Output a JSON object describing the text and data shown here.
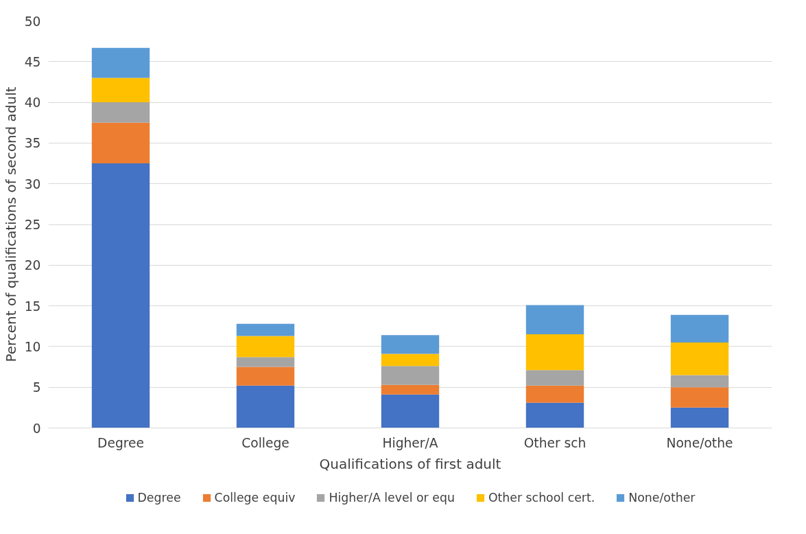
{
  "chart_data": {
    "type": "bar",
    "stacked": true,
    "xlabel": "Qualifications of first adult",
    "ylabel": "Percent of qualifications of second adult",
    "categories": [
      "Degree",
      "College",
      "Higher/A",
      "Other sch",
      "None/othe"
    ],
    "series": [
      {
        "name": "Degree",
        "color": "#4472c4",
        "values": [
          32.5,
          5.2,
          4.1,
          3.1,
          2.5
        ]
      },
      {
        "name": "College equiv",
        "color": "#ed7d31",
        "values": [
          5.0,
          2.3,
          1.2,
          2.1,
          2.5
        ]
      },
      {
        "name": "Higher/A level or equ",
        "color": "#a5a5a5",
        "values": [
          2.5,
          1.2,
          2.3,
          1.9,
          1.5
        ]
      },
      {
        "name": "Other school cert.",
        "color": "#ffc000",
        "values": [
          3.0,
          2.6,
          1.5,
          4.4,
          4.0
        ]
      },
      {
        "name": "None/other",
        "color": "#5b9bd5",
        "values": [
          3.7,
          1.5,
          2.3,
          3.6,
          3.4
        ]
      }
    ],
    "ylim": [
      0,
      50
    ],
    "yticks": [
      0,
      5,
      10,
      15,
      20,
      25,
      30,
      35,
      40,
      45,
      50
    ],
    "grid": "y",
    "legend": "bottom"
  }
}
